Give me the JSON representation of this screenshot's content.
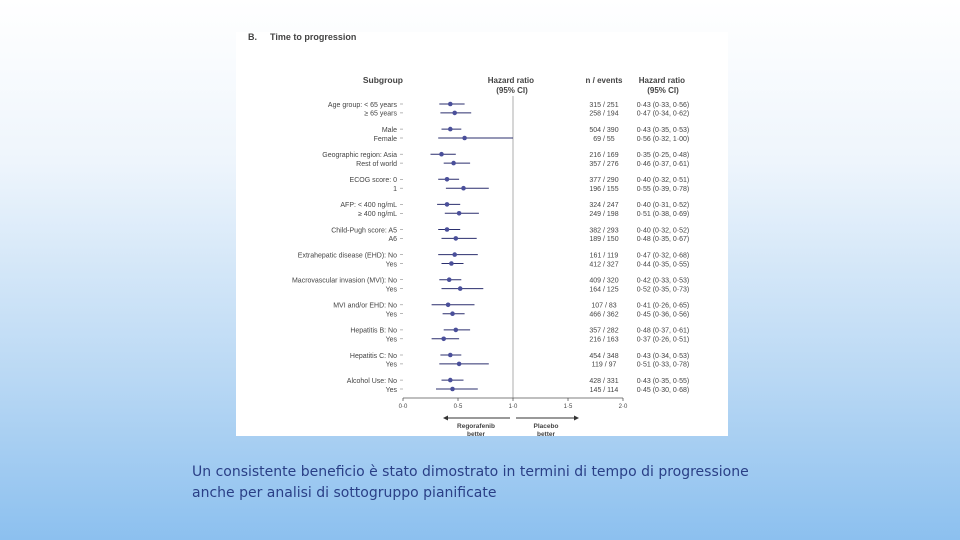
{
  "slide": {
    "caption_line1": "Un consistente beneficio è stato dimostrato in termini di tempo di progressione",
    "caption_line2": "anche per analisi di sottogruppo pianificate"
  },
  "chart_data": {
    "type": "forest",
    "panel_label": "B.",
    "title": "Time to progression",
    "columns": {
      "subgroup": "Subgroup",
      "hazard_ratio": "Hazard ratio (95% CI)",
      "n_events": "n / events",
      "hazard_ratio_ci": "Hazard ratio (95% CI)"
    },
    "xlim": [
      0,
      2
    ],
    "x_ticks": [
      "0·0",
      "0·5",
      "1·0",
      "1·5",
      "2·0"
    ],
    "reference_line": 1.0,
    "favours_left": "Regorafenib better",
    "favours_right": "Placebo better",
    "point_color": "#4a4f9a",
    "groups": [
      {
        "label": "Age group",
        "rows": [
          {
            "level": "< 65 years",
            "n": "315 / 251",
            "hr": 0.43,
            "lo": 0.33,
            "hi": 0.56,
            "ci_text": "0·43 (0·33, 0·56)"
          },
          {
            "level": "≥ 65 years",
            "n": "258 / 194",
            "hr": 0.47,
            "lo": 0.34,
            "hi": 0.62,
            "ci_text": "0·47 (0·34, 0·62)"
          }
        ]
      },
      {
        "label": "",
        "rows": [
          {
            "level": "Male",
            "n": "504 / 390",
            "hr": 0.43,
            "lo": 0.35,
            "hi": 0.53,
            "ci_text": "0·43 (0·35, 0·53)"
          },
          {
            "level": "Female",
            "n": "69 / 55",
            "hr": 0.56,
            "lo": 0.32,
            "hi": 1.0,
            "ci_text": "0·56 (0·32, 1·00)"
          }
        ]
      },
      {
        "label": "Geographic region",
        "rows": [
          {
            "level": "Asia",
            "n": "216 / 169",
            "hr": 0.35,
            "lo": 0.25,
            "hi": 0.48,
            "ci_text": "0·35 (0·25, 0·48)"
          },
          {
            "level": "Rest of world",
            "n": "357 / 276",
            "hr": 0.46,
            "lo": 0.37,
            "hi": 0.61,
            "ci_text": "0·46 (0·37, 0·61)"
          }
        ]
      },
      {
        "label": "ECOG score",
        "rows": [
          {
            "level": "0",
            "n": "377 / 290",
            "hr": 0.4,
            "lo": 0.32,
            "hi": 0.51,
            "ci_text": "0·40 (0·32, 0·51)"
          },
          {
            "level": "1",
            "n": "196 / 155",
            "hr": 0.55,
            "lo": 0.39,
            "hi": 0.78,
            "ci_text": "0·55 (0·39, 0·78)"
          }
        ]
      },
      {
        "label": "AFP",
        "rows": [
          {
            "level": "< 400 ng/mL",
            "n": "324 / 247",
            "hr": 0.4,
            "lo": 0.31,
            "hi": 0.52,
            "ci_text": "0·40 (0·31, 0·52)"
          },
          {
            "level": "≥ 400 ng/mL",
            "n": "249 / 198",
            "hr": 0.51,
            "lo": 0.38,
            "hi": 0.69,
            "ci_text": "0·51 (0·38, 0·69)"
          }
        ]
      },
      {
        "label": "Child-Pugh score",
        "rows": [
          {
            "level": "A5",
            "n": "382 / 293",
            "hr": 0.4,
            "lo": 0.32,
            "hi": 0.52,
            "ci_text": "0·40 (0·32, 0·52)"
          },
          {
            "level": "A6",
            "n": "189 / 150",
            "hr": 0.48,
            "lo": 0.35,
            "hi": 0.67,
            "ci_text": "0·48 (0·35, 0·67)"
          }
        ]
      },
      {
        "label": "Extrahepatic disease (EHD)",
        "rows": [
          {
            "level": "No",
            "n": "161 / 119",
            "hr": 0.47,
            "lo": 0.32,
            "hi": 0.68,
            "ci_text": "0·47 (0·32, 0·68)"
          },
          {
            "level": "Yes",
            "n": "412 / 327",
            "hr": 0.44,
            "lo": 0.35,
            "hi": 0.55,
            "ci_text": "0·44 (0·35, 0·55)"
          }
        ]
      },
      {
        "label": "Macrovascular invasion (MVI)",
        "rows": [
          {
            "level": "No",
            "n": "409 / 320",
            "hr": 0.42,
            "lo": 0.33,
            "hi": 0.53,
            "ci_text": "0·42 (0·33, 0·53)"
          },
          {
            "level": "Yes",
            "n": "164 / 125",
            "hr": 0.52,
            "lo": 0.35,
            "hi": 0.73,
            "ci_text": "0·52 (0·35, 0·73)"
          }
        ]
      },
      {
        "label": "MVI and/or EHD",
        "rows": [
          {
            "level": "No",
            "n": "107 / 83",
            "hr": 0.41,
            "lo": 0.26,
            "hi": 0.65,
            "ci_text": "0·41 (0·26, 0·65)"
          },
          {
            "level": "Yes",
            "n": "466 / 362",
            "hr": 0.45,
            "lo": 0.36,
            "hi": 0.56,
            "ci_text": "0·45 (0·36, 0·56)"
          }
        ]
      },
      {
        "label": "Hepatitis B",
        "rows": [
          {
            "level": "No",
            "n": "357 / 282",
            "hr": 0.48,
            "lo": 0.37,
            "hi": 0.61,
            "ci_text": "0·48 (0·37, 0·61)"
          },
          {
            "level": "Yes",
            "n": "216 / 163",
            "hr": 0.37,
            "lo": 0.26,
            "hi": 0.51,
            "ci_text": "0·37 (0·26, 0·51)"
          }
        ]
      },
      {
        "label": "Hepatitis C",
        "rows": [
          {
            "level": "No",
            "n": "454 / 348",
            "hr": 0.43,
            "lo": 0.34,
            "hi": 0.53,
            "ci_text": "0·43 (0·34, 0·53)"
          },
          {
            "level": "Yes",
            "n": "119 / 97",
            "hr": 0.51,
            "lo": 0.33,
            "hi": 0.78,
            "ci_text": "0·51 (0·33, 0·78)"
          }
        ]
      },
      {
        "label": "Alcohol Use",
        "rows": [
          {
            "level": "No",
            "n": "428 / 331",
            "hr": 0.43,
            "lo": 0.35,
            "hi": 0.55,
            "ci_text": "0·43 (0·35, 0·55)"
          },
          {
            "level": "Yes",
            "n": "145 / 114",
            "hr": 0.45,
            "lo": 0.3,
            "hi": 0.68,
            "ci_text": "0·45 (0·30, 0·68)"
          }
        ]
      }
    ]
  }
}
